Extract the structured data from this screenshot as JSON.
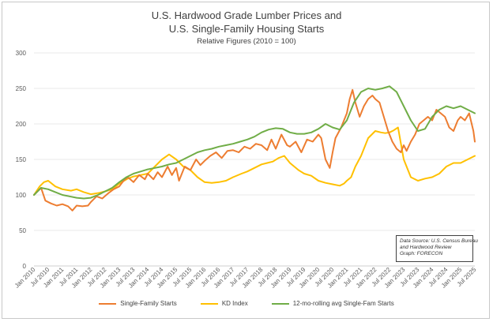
{
  "chart_data": {
    "type": "line",
    "title": "U.S. Hardwood Grade Lumber Prices and",
    "title_line2": "U.S. Single-Family Housing Starts",
    "subtitle": "Relative Figures (2010 = 100)",
    "ylim": [
      0,
      300
    ],
    "yticks": [
      0,
      50,
      100,
      150,
      200,
      250,
      300
    ],
    "xlim": [
      2010.0,
      2025.5
    ],
    "xtick_labels": [
      "Jan 2010",
      "Jul 2010",
      "Jan 2011",
      "Jul 2011",
      "Jan 2012",
      "Jul 2012",
      "Jan 2013",
      "Jul 2013",
      "Jan 2014",
      "Jul 2014",
      "Jan 2015",
      "Jul 2015",
      "Jan 2016",
      "Jul 2016",
      "Jan 2017",
      "Jul 2017",
      "Jan 2018",
      "Jul 2018",
      "Jan 2019",
      "Jul 2019",
      "Jan 2020",
      "Jul 2020",
      "Jan 2021",
      "Jul 2021",
      "Jan 2022",
      "Jul 2022",
      "Jan 2023",
      "Jul 2023",
      "Jan 2024",
      "Jul 2024",
      "Jan 2025",
      "Jul 2025"
    ],
    "source_lines": [
      "Data Source: U.S. Census Bureau",
      "and Hardwood Review",
      "Graph: FORECON"
    ],
    "series": [
      {
        "name": "Single-Family Starts",
        "color": "#ED7D31",
        "x": [
          2010.0,
          2010.25,
          2010.4,
          2010.6,
          2010.8,
          2011.0,
          2011.2,
          2011.35,
          2011.5,
          2011.7,
          2011.9,
          2012.0,
          2012.2,
          2012.4,
          2012.6,
          2012.8,
          2013.0,
          2013.15,
          2013.3,
          2013.5,
          2013.7,
          2013.9,
          2014.0,
          2014.2,
          2014.35,
          2014.5,
          2014.7,
          2014.85,
          2015.0,
          2015.1,
          2015.3,
          2015.5,
          2015.7,
          2015.85,
          2016.0,
          2016.2,
          2016.4,
          2016.6,
          2016.8,
          2017.0,
          2017.2,
          2017.4,
          2017.6,
          2017.8,
          2018.0,
          2018.2,
          2018.35,
          2018.5,
          2018.7,
          2018.9,
          2019.0,
          2019.2,
          2019.4,
          2019.6,
          2019.8,
          2020.0,
          2020.1,
          2020.25,
          2020.4,
          2020.5,
          2020.6,
          2020.8,
          2021.0,
          2021.1,
          2021.2,
          2021.3,
          2021.45,
          2021.6,
          2021.75,
          2021.9,
          2022.0,
          2022.15,
          2022.3,
          2022.45,
          2022.6,
          2022.75,
          2022.9,
          2023.0,
          2023.1,
          2023.25,
          2023.4,
          2023.55,
          2023.7,
          2023.85,
          2024.0,
          2024.15,
          2024.3,
          2024.45,
          2024.6,
          2024.75,
          2024.9,
          2025.0,
          2025.15,
          2025.3,
          2025.45,
          2025.5
        ],
        "values": [
          100,
          110,
          92,
          88,
          85,
          87,
          84,
          78,
          85,
          84,
          85,
          90,
          98,
          95,
          102,
          108,
          112,
          120,
          125,
          118,
          128,
          122,
          130,
          122,
          132,
          125,
          140,
          128,
          138,
          120,
          140,
          135,
          150,
          142,
          148,
          155,
          160,
          152,
          162,
          163,
          160,
          168,
          165,
          172,
          170,
          163,
          178,
          165,
          185,
          170,
          168,
          175,
          160,
          178,
          175,
          185,
          180,
          150,
          138,
          160,
          180,
          195,
          215,
          235,
          248,
          230,
          210,
          225,
          235,
          240,
          235,
          230,
          210,
          190,
          175,
          165,
          160,
          170,
          162,
          175,
          185,
          200,
          205,
          210,
          205,
          220,
          215,
          210,
          195,
          190,
          205,
          210,
          205,
          215,
          190,
          175
        ]
      },
      {
        "name": "KD Index",
        "color": "#FFC000",
        "x": [
          2010.0,
          2010.2,
          2010.35,
          2010.5,
          2010.75,
          2011.0,
          2011.3,
          2011.5,
          2011.75,
          2012.0,
          2012.3,
          2012.5,
          2012.75,
          2013.0,
          2013.3,
          2013.5,
          2013.75,
          2014.0,
          2014.25,
          2014.5,
          2014.75,
          2015.0,
          2015.25,
          2015.5,
          2015.75,
          2016.0,
          2016.25,
          2016.5,
          2016.75,
          2017.0,
          2017.3,
          2017.5,
          2017.75,
          2018.0,
          2018.2,
          2018.4,
          2018.6,
          2018.8,
          2019.0,
          2019.3,
          2019.5,
          2019.75,
          2020.0,
          2020.25,
          2020.5,
          2020.75,
          2020.9,
          2021.0,
          2021.15,
          2021.3,
          2021.5,
          2021.75,
          2022.0,
          2022.2,
          2022.35,
          2022.5,
          2022.65,
          2022.8,
          2023.0,
          2023.25,
          2023.5,
          2023.75,
          2024.0,
          2024.25,
          2024.5,
          2024.75,
          2025.0,
          2025.25,
          2025.5
        ],
        "values": [
          100,
          112,
          118,
          120,
          112,
          108,
          106,
          108,
          104,
          101,
          103,
          105,
          108,
          116,
          123,
          126,
          128,
          130,
          140,
          150,
          157,
          150,
          140,
          135,
          125,
          118,
          117,
          118,
          120,
          125,
          130,
          133,
          138,
          143,
          145,
          147,
          152,
          155,
          145,
          135,
          130,
          127,
          120,
          117,
          115,
          113,
          116,
          120,
          125,
          140,
          155,
          180,
          190,
          188,
          187,
          188,
          191,
          195,
          150,
          125,
          120,
          123,
          125,
          130,
          140,
          145,
          145,
          150,
          155
        ]
      },
      {
        "name": "12-mo-rolling avg Single-Fam Starts",
        "color": "#70AD47",
        "x": [
          2010.0,
          2010.25,
          2010.5,
          2010.75,
          2011.0,
          2011.25,
          2011.5,
          2011.75,
          2012.0,
          2012.25,
          2012.5,
          2012.75,
          2013.0,
          2013.25,
          2013.5,
          2013.75,
          2014.0,
          2014.25,
          2014.5,
          2014.75,
          2015.0,
          2015.25,
          2015.5,
          2015.75,
          2016.0,
          2016.25,
          2016.5,
          2016.75,
          2017.0,
          2017.25,
          2017.5,
          2017.75,
          2018.0,
          2018.25,
          2018.5,
          2018.75,
          2019.0,
          2019.25,
          2019.5,
          2019.75,
          2020.0,
          2020.25,
          2020.5,
          2020.75,
          2021.0,
          2021.25,
          2021.5,
          2021.75,
          2022.0,
          2022.25,
          2022.5,
          2022.75,
          2023.0,
          2023.25,
          2023.5,
          2023.75,
          2024.0,
          2024.25,
          2024.5,
          2024.75,
          2025.0,
          2025.25,
          2025.5
        ],
        "values": [
          100,
          110,
          108,
          104,
          100,
          98,
          96,
          95,
          96,
          100,
          105,
          110,
          118,
          125,
          130,
          133,
          136,
          138,
          140,
          143,
          145,
          150,
          155,
          160,
          163,
          165,
          168,
          170,
          172,
          175,
          178,
          182,
          188,
          192,
          194,
          193,
          188,
          186,
          186,
          188,
          193,
          200,
          195,
          192,
          205,
          230,
          245,
          250,
          248,
          250,
          253,
          245,
          225,
          205,
          190,
          193,
          210,
          220,
          225,
          222,
          225,
          220,
          215
        ]
      }
    ]
  },
  "legend": {
    "items": [
      "Single-Family Starts",
      "KD Index",
      "12-mo-rolling avg Single-Fam Starts"
    ]
  }
}
